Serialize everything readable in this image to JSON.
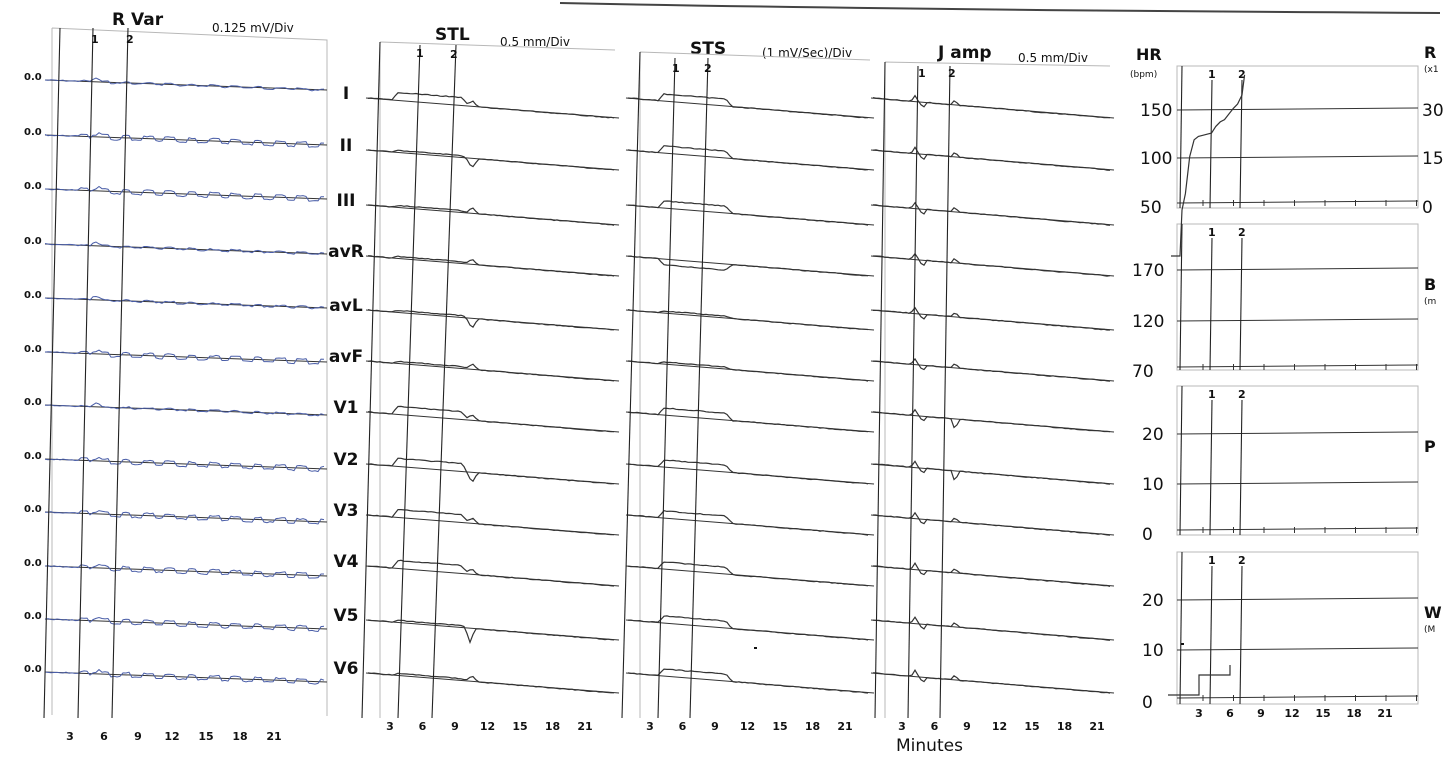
{
  "x_axis_title": "Minutes",
  "colors": {
    "trace": "#333333",
    "blue_trace": "#4a5ea8",
    "frame": "#b8b8b8",
    "background": "#ffffff"
  },
  "chart_data": [
    {
      "type": "line",
      "panel": "R Var",
      "title": "R Var",
      "scale": "0.125 mV/Div",
      "y_labels": [
        "0.0",
        "0.0",
        "0.0",
        "0.0",
        "0.0",
        "0.0",
        "0.0",
        "0.0",
        "0.0",
        "0.0",
        "0.0",
        "0.0"
      ],
      "x_ticks": [
        "3",
        "6",
        "9",
        "12",
        "15",
        "18",
        "21"
      ],
      "markers": [
        "1",
        "2"
      ],
      "marker_minutes": [
        5,
        8
      ],
      "xlim": [
        0,
        24
      ]
    },
    {
      "type": "line",
      "panel": "STL",
      "title": "STL",
      "scale": "0.5 mm/Div",
      "leads": [
        "I",
        "II",
        "III",
        "avR",
        "avL",
        "avF",
        "V1",
        "V2",
        "V3",
        "V4",
        "V5",
        "V6"
      ],
      "x_ticks": [
        "3",
        "6",
        "9",
        "12",
        "15",
        "18",
        "21"
      ],
      "markers": [
        "1",
        "2"
      ],
      "marker_minutes": [
        5,
        8
      ],
      "xlim": [
        0,
        24
      ]
    },
    {
      "type": "line",
      "panel": "STS",
      "title": "STS",
      "scale": "(1 mV/Sec)/Div",
      "x_ticks": [
        "3",
        "6",
        "9",
        "12",
        "15",
        "18",
        "21"
      ],
      "markers": [
        "1",
        "2"
      ],
      "marker_minutes": [
        5,
        8
      ],
      "xlim": [
        0,
        24
      ]
    },
    {
      "type": "line",
      "panel": "J amp",
      "title": "J amp",
      "scale": "0.5 mm/Div",
      "x_ticks": [
        "3",
        "6",
        "9",
        "12",
        "15",
        "18",
        "21"
      ],
      "markers": [
        "1",
        "2"
      ],
      "marker_minutes": [
        5,
        8
      ],
      "xlim": [
        0,
        24
      ]
    },
    {
      "type": "line",
      "panel": "HR",
      "title": "HR",
      "unit": "(bpm)",
      "y_ticks": [
        "150",
        "100",
        "50"
      ],
      "right_label": "R",
      "right_unit": "(x1",
      "right_ticks": [
        "30",
        "15",
        "0"
      ],
      "markers": [
        "1",
        "2"
      ],
      "marker_minutes": [
        3.5,
        6.5
      ],
      "xlim": [
        0,
        24
      ],
      "ylim": [
        50,
        175
      ],
      "x": [
        0.5,
        1,
        1.5,
        2,
        2.5,
        3,
        3.5,
        4,
        4.5,
        5,
        5.5,
        6,
        6.5,
        7,
        7.3
      ],
      "values": [
        62,
        95,
        110,
        113,
        114,
        115,
        116,
        122,
        126,
        128,
        133,
        138,
        142,
        150,
        168
      ]
    },
    {
      "type": "line",
      "panel": "BP",
      "y_ticks": [
        "170",
        "120",
        "70"
      ],
      "right_label": "B",
      "right_unit": "(m",
      "markers": [
        "1",
        "2"
      ],
      "marker_minutes": [
        3.5,
        6.5
      ],
      "xlim": [
        0,
        24
      ],
      "ylim": [
        70,
        220
      ]
    },
    {
      "type": "line",
      "panel": "PV",
      "y_ticks": [
        "20",
        "10",
        "0"
      ],
      "right_label": "P",
      "markers": [
        "1",
        "2"
      ],
      "marker_minutes": [
        3.5,
        6.5
      ],
      "xlim": [
        0,
        24
      ],
      "ylim": [
        0,
        30
      ]
    },
    {
      "type": "line",
      "panel": "W",
      "y_ticks": [
        "20",
        "10",
        "0"
      ],
      "right_label": "W",
      "right_unit": "(M",
      "x_ticks": [
        "3",
        "6",
        "9",
        "12",
        "15",
        "18",
        "21"
      ],
      "markers": [
        "1",
        "2"
      ],
      "marker_minutes": [
        3.5,
        6.5
      ],
      "xlim": [
        0,
        24
      ],
      "ylim": [
        0,
        30
      ],
      "x": [
        0,
        3,
        3,
        6,
        6
      ],
      "values": [
        1,
        1,
        5,
        5,
        7
      ]
    }
  ]
}
